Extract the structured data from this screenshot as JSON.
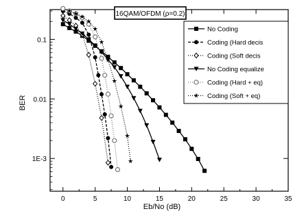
{
  "chart_data": {
    "type": "line",
    "title": "16QAM/OFDM (ρ=0.2)",
    "xlabel": "Eb/No (dB)",
    "ylabel": "BER",
    "xlim": [
      -2,
      35
    ],
    "ylim_log10": [
      -3.55,
      -0.5
    ],
    "y_scale": "log",
    "grid": false,
    "legend_position": "top-right",
    "x_ticks": [
      0,
      5,
      10,
      15,
      20,
      25,
      30,
      35
    ],
    "x_tick_labels": [
      "0",
      "5",
      "10",
      "15",
      "20",
      "25",
      "30",
      "35"
    ],
    "y_ticks": [
      0.1,
      0.01,
      0.001
    ],
    "y_tick_labels": [
      "0.1",
      "0.01",
      "1E-3"
    ],
    "series": [
      {
        "name": "No Coding",
        "marker": "square",
        "dash": "solid",
        "color": "#000000",
        "x": [
          0,
          1,
          2,
          3,
          4,
          5,
          6,
          7,
          8,
          9,
          10,
          11,
          12,
          13,
          14,
          15,
          16,
          17,
          18,
          19,
          20,
          21,
          22
        ],
        "y": [
          0.18,
          0.155,
          0.135,
          0.115,
          0.095,
          0.078,
          0.063,
          0.051,
          0.041,
          0.033,
          0.026,
          0.0205,
          0.016,
          0.0124,
          0.0095,
          0.0072,
          0.0054,
          0.004,
          0.0029,
          0.0021,
          0.00145,
          0.00098,
          0.00062
        ]
      },
      {
        "name": "Coding (Hard decis",
        "marker": "circle",
        "dash": "4,2",
        "color": "#000000",
        "x": [
          0,
          1,
          2,
          3,
          4,
          5,
          5.5,
          6,
          6.5,
          7,
          7.5
        ],
        "y": [
          0.3,
          0.27,
          0.23,
          0.19,
          0.12,
          0.05,
          0.025,
          0.012,
          0.0055,
          0.0022,
          0.00072
        ]
      },
      {
        "name": "Coding (Soft decis",
        "marker": "diamond",
        "dash": "1,2",
        "color": "#000000",
        "x": [
          0,
          1,
          2,
          3,
          4,
          5,
          6,
          7
        ],
        "y": [
          0.25,
          0.21,
          0.17,
          0.12,
          0.055,
          0.018,
          0.0048,
          0.00085
        ]
      },
      {
        "name": "No Coding equalize",
        "marker": "triangle-down",
        "dash": "solid",
        "color": "#000000",
        "x": [
          0,
          1,
          2,
          3,
          4,
          5,
          6,
          7,
          8,
          9,
          10,
          11,
          12,
          13,
          14,
          15
        ],
        "y": [
          0.21,
          0.18,
          0.15,
          0.125,
          0.1,
          0.079,
          0.061,
          0.046,
          0.034,
          0.024,
          0.016,
          0.0103,
          0.0063,
          0.0036,
          0.0019,
          0.00095
        ]
      },
      {
        "name": "Coding (Hard + eq)",
        "marker": "circle-open",
        "dash": "1,2",
        "color": "#777777",
        "x": [
          0,
          1,
          2,
          3,
          4,
          5,
          6,
          6.5,
          7,
          7.5,
          8,
          8.5
        ],
        "y": [
          0.33,
          0.3,
          0.27,
          0.23,
          0.18,
          0.11,
          0.048,
          0.025,
          0.012,
          0.0052,
          0.002,
          0.00065
        ]
      },
      {
        "name": "Coding (Soft + eq)",
        "marker": "star",
        "dash": "1,2",
        "color": "#000000",
        "x": [
          1,
          2,
          3,
          4,
          5,
          6,
          7,
          8,
          9,
          10,
          10.5
        ],
        "y": [
          0.3,
          0.27,
          0.24,
          0.2,
          0.15,
          0.09,
          0.045,
          0.02,
          0.0075,
          0.0024,
          0.0009
        ]
      }
    ]
  }
}
